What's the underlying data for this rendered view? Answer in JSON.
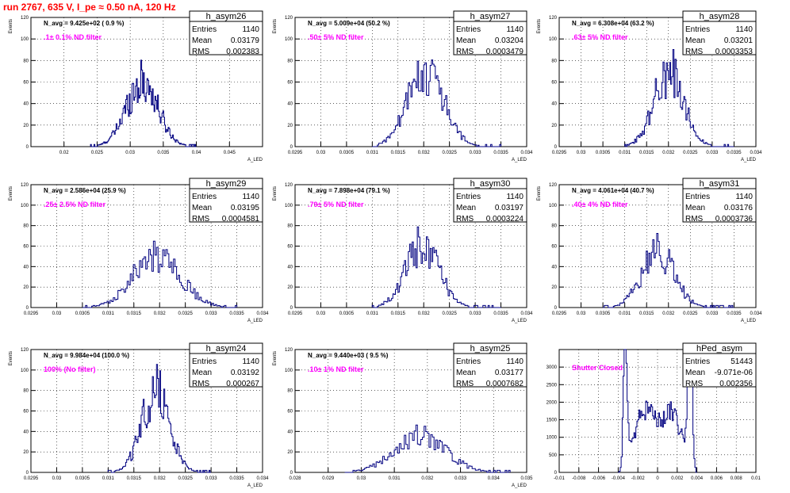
{
  "run_title": "run 2767,   635 V, I_pe ≈ 0.50 nA, 120 Hz",
  "colors": {
    "hist": "#000080",
    "label": "#ff00ff",
    "title": "#ff0000",
    "grid": "#000000"
  },
  "chart_data": [
    {
      "type": "histogram",
      "name": "h_asym26",
      "navg": "N_avg = 9.425e+02 ( 0.9 %)",
      "filter": ".1± 0.1% ND filter",
      "entries": "1140",
      "mean": "0.03179",
      "rms": "0.002383",
      "ylabel": "Events",
      "xlabel": "A_LED",
      "xlim": [
        0.015,
        0.05
      ],
      "ylim": [
        0,
        120
      ],
      "xticks": [
        0.02,
        0.025,
        0.03,
        0.035,
        0.04,
        0.045
      ],
      "xtick_labels": [
        "0.02",
        "0.025",
        "0.03",
        "0.035",
        "0.04",
        "0.045"
      ],
      "yticks": [
        0,
        20,
        40,
        60,
        80,
        100,
        120
      ],
      "ytick_labels": [
        "0",
        "20",
        "40",
        "60",
        "80",
        "100",
        "120"
      ],
      "dist": {
        "type": "gauss",
        "center": 0.0318,
        "sigma": 0.0024,
        "peak": 60,
        "nbins": 120,
        "range": [
          0.024,
          0.04
        ]
      }
    },
    {
      "type": "histogram",
      "name": "h_asym27",
      "navg": "N_avg = 5.009e+04 (50.2 %)",
      "filter": ".50± 5% ND filter",
      "entries": "1140",
      "mean": "0.03204",
      "rms": "0.0003479",
      "ylabel": "Events",
      "xlabel": "A_LED",
      "xlim": [
        0.0295,
        0.034
      ],
      "ylim": [
        0,
        120
      ],
      "xticks": [
        0.0295,
        0.03,
        0.0305,
        0.031,
        0.0315,
        0.032,
        0.0325,
        0.033,
        0.0335,
        0.034
      ],
      "xtick_labels": [
        "0.0295",
        "0.03",
        "0.0305",
        "0.031",
        "0.0315",
        "0.032",
        "0.0325",
        "0.033",
        "0.0335",
        "0.034"
      ],
      "yticks": [
        0,
        20,
        40,
        60,
        80,
        100,
        120
      ],
      "ytick_labels": [
        "0",
        "20",
        "40",
        "60",
        "80",
        "100",
        "120"
      ],
      "dist": {
        "type": "gauss",
        "center": 0.03204,
        "sigma": 0.00035,
        "peak": 70,
        "nbins": 100,
        "range": [
          0.031,
          0.0335
        ]
      }
    },
    {
      "type": "histogram",
      "name": "h_asym28",
      "navg": "N_avg = 6.308e+04 (63.2 %)",
      "filter": ".63± 5% ND filter",
      "entries": "1140",
      "mean": "0.03201",
      "rms": "0.0003353",
      "ylabel": "Events",
      "xlabel": "A_LED",
      "xlim": [
        0.0295,
        0.034
      ],
      "ylim": [
        0,
        120
      ],
      "xticks": [
        0.0295,
        0.03,
        0.0305,
        0.031,
        0.0315,
        0.032,
        0.0325,
        0.033,
        0.0335,
        0.034
      ],
      "xtick_labels": [
        "0.0295",
        "0.03",
        "0.0305",
        "0.031",
        "0.0315",
        "0.032",
        "0.0325",
        "0.033",
        "0.0335",
        "0.034"
      ],
      "yticks": [
        0,
        20,
        40,
        60,
        80,
        100,
        120
      ],
      "ytick_labels": [
        "0",
        "20",
        "40",
        "60",
        "80",
        "100",
        "120"
      ],
      "dist": {
        "type": "gauss",
        "center": 0.03201,
        "sigma": 0.00034,
        "peak": 70,
        "nbins": 100,
        "range": [
          0.031,
          0.0335
        ]
      }
    },
    {
      "type": "histogram",
      "name": "h_asym29",
      "navg": "N_avg = 2.586e+04 (25.9 %)",
      "filter": ".25± 2.5% ND filter",
      "entries": "1140",
      "mean": "0.03195",
      "rms": "0.0004581",
      "ylabel": "Events",
      "xlabel": "A_LED",
      "xlim": [
        0.0295,
        0.034
      ],
      "ylim": [
        0,
        120
      ],
      "xticks": [
        0.0295,
        0.03,
        0.0305,
        0.031,
        0.0315,
        0.032,
        0.0325,
        0.033,
        0.0335,
        0.034
      ],
      "xtick_labels": [
        "0.0295",
        "0.03",
        "0.0305",
        "0.031",
        "0.0315",
        "0.032",
        "0.0325",
        "0.033",
        "0.0335",
        "0.034"
      ],
      "yticks": [
        0,
        20,
        40,
        60,
        80,
        100,
        120
      ],
      "ytick_labels": [
        "0",
        "20",
        "40",
        "60",
        "80",
        "100",
        "120"
      ],
      "dist": {
        "type": "gauss",
        "center": 0.03195,
        "sigma": 0.00046,
        "peak": 50,
        "nbins": 100,
        "range": [
          0.0305,
          0.0335
        ]
      }
    },
    {
      "type": "histogram",
      "name": "h_asym30",
      "navg": "N_avg = 7.898e+04 (79.1 %)",
      "filter": ".79± 5% ND filter",
      "entries": "1140",
      "mean": "0.03197",
      "rms": "0.0003224",
      "ylabel": "Events",
      "xlabel": "A_LED",
      "xlim": [
        0.0295,
        0.034
      ],
      "ylim": [
        0,
        120
      ],
      "xticks": [
        0.0295,
        0.03,
        0.0305,
        0.031,
        0.0315,
        0.032,
        0.0325,
        0.033,
        0.0335,
        0.034
      ],
      "xtick_labels": [
        "0.0295",
        "0.03",
        "0.0305",
        "0.031",
        "0.0315",
        "0.032",
        "0.0325",
        "0.033",
        "0.0335",
        "0.034"
      ],
      "yticks": [
        0,
        20,
        40,
        60,
        80,
        100,
        120
      ],
      "ytick_labels": [
        "0",
        "20",
        "40",
        "60",
        "80",
        "100",
        "120"
      ],
      "dist": {
        "type": "gauss",
        "center": 0.03197,
        "sigma": 0.00032,
        "peak": 62,
        "nbins": 100,
        "range": [
          0.031,
          0.0335
        ]
      }
    },
    {
      "type": "histogram",
      "name": "h_asym31",
      "navg": "N_avg = 4.061e+04 (40.7 %)",
      "filter": ".40± 4% ND filter",
      "entries": "1140",
      "mean": "0.03176",
      "rms": "0.0003736",
      "ylabel": "Events",
      "xlabel": "A_LED",
      "xlim": [
        0.0295,
        0.034
      ],
      "ylim": [
        0,
        120
      ],
      "xticks": [
        0.0295,
        0.03,
        0.0305,
        0.031,
        0.0315,
        0.032,
        0.0325,
        0.033,
        0.0335,
        0.034
      ],
      "xtick_labels": [
        "0.0295",
        "0.03",
        "0.0305",
        "0.031",
        "0.0315",
        "0.032",
        "0.0325",
        "0.033",
        "0.0335",
        "0.034"
      ],
      "yticks": [
        0,
        20,
        40,
        60,
        80,
        100,
        120
      ],
      "ytick_labels": [
        "0",
        "20",
        "40",
        "60",
        "80",
        "100",
        "120"
      ],
      "dist": {
        "type": "gauss",
        "center": 0.03176,
        "sigma": 0.00037,
        "peak": 55,
        "nbins": 100,
        "range": [
          0.0305,
          0.0335
        ]
      }
    },
    {
      "type": "histogram",
      "name": "h_asym24",
      "navg": "N_avg = 9.984e+04 (100.0 %)",
      "filter": "100% (No filter)",
      "entries": "1140",
      "mean": "0.03192",
      "rms": "0.000267",
      "ylabel": "Events",
      "xlabel": "A_LED",
      "xlim": [
        0.0295,
        0.034
      ],
      "ylim": [
        0,
        120
      ],
      "xticks": [
        0.0295,
        0.03,
        0.0305,
        0.031,
        0.0315,
        0.032,
        0.0325,
        0.033,
        0.0335,
        0.034
      ],
      "xtick_labels": [
        "0.0295",
        "0.03",
        "0.0305",
        "0.031",
        "0.0315",
        "0.032",
        "0.0325",
        "0.033",
        "0.0335",
        "0.034"
      ],
      "yticks": [
        0,
        20,
        40,
        60,
        80,
        100,
        120
      ],
      "ytick_labels": [
        "0",
        "20",
        "40",
        "60",
        "80",
        "100",
        "120"
      ],
      "dist": {
        "type": "gauss",
        "center": 0.03192,
        "sigma": 0.00027,
        "peak": 80,
        "nbins": 100,
        "range": [
          0.031,
          0.033
        ]
      }
    },
    {
      "type": "histogram",
      "name": "h_asym25",
      "navg": "N_avg = 9.440e+03 ( 9.5 %)",
      "filter": ".10± 1% ND filter",
      "entries": "1140",
      "mean": "0.03177",
      "rms": "0.0007682",
      "ylabel": "Events",
      "xlabel": "A_LED",
      "xlim": [
        0.028,
        0.035
      ],
      "ylim": [
        0,
        120
      ],
      "xticks": [
        0.028,
        0.029,
        0.03,
        0.031,
        0.032,
        0.033,
        0.034,
        0.035
      ],
      "xtick_labels": [
        "0.028",
        "0.029",
        "0.03",
        "0.031",
        "0.032",
        "0.033",
        "0.034",
        "0.035"
      ],
      "yticks": [
        0,
        20,
        40,
        60,
        80,
        100,
        120
      ],
      "ytick_labels": [
        "0",
        "20",
        "40",
        "60",
        "80",
        "100",
        "120"
      ],
      "dist": {
        "type": "gauss",
        "center": 0.03177,
        "sigma": 0.00077,
        "peak": 35,
        "nbins": 100,
        "range": [
          0.0295,
          0.0345
        ]
      }
    },
    {
      "type": "histogram",
      "name": "hPed_asym",
      "navg": "",
      "filter": "Shutter Closed",
      "entries": "51443",
      "mean": "-9.071e-06",
      "rms": "0.002356",
      "ylabel": "",
      "xlabel": "",
      "xlim": [
        -0.01,
        0.01
      ],
      "ylim": [
        0,
        3500
      ],
      "xticks": [
        -0.01,
        -0.008,
        -0.006,
        -0.004,
        -0.002,
        0,
        0.002,
        0.004,
        0.006,
        0.008,
        0.01
      ],
      "xtick_labels": [
        "-0.01",
        "-0.008",
        "-0.006",
        "-0.004",
        "-0.002",
        "0",
        "0.002",
        "0.004",
        "0.006",
        "0.008",
        "0.01"
      ],
      "yticks": [
        0,
        500,
        1000,
        1500,
        2000,
        2500,
        3000
      ],
      "ytick_labels": [
        "0",
        "500",
        "1000",
        "1500",
        "2000",
        "2500",
        "3000"
      ],
      "dist": {
        "type": "bimodal",
        "nbins": 80,
        "range": [
          -0.004,
          0.004
        ]
      }
    }
  ]
}
